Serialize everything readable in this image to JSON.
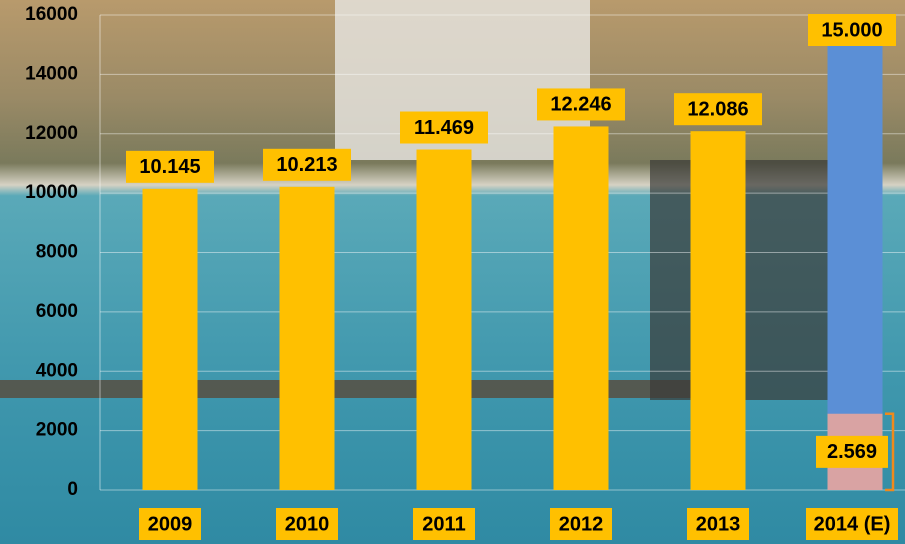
{
  "chart_data": {
    "type": "bar",
    "categories": [
      "2009",
      "2010",
      "2011",
      "2012",
      "2013",
      "2014 (E)"
    ],
    "series": [
      {
        "values": [
          10145,
          10213,
          11469,
          12246,
          12086,
          15000
        ],
        "value_labels": [
          "10.145",
          "10.213",
          "11.469",
          "12.246",
          "12.086",
          "15.000"
        ],
        "colors": [
          "#ffc000",
          "#ffc000",
          "#ffc000",
          "#ffc000",
          "#ffc000",
          "#5b8fd6"
        ]
      },
      {
        "values": [
          null,
          null,
          null,
          null,
          null,
          2569
        ],
        "value_labels": [
          null,
          null,
          null,
          null,
          null,
          "2.569"
        ],
        "color": "#d9a3a3"
      }
    ],
    "ylim": [
      0,
      16000
    ],
    "yticks": [
      0,
      2000,
      4000,
      6000,
      8000,
      10000,
      12000,
      14000,
      16000
    ],
    "grid": true
  }
}
